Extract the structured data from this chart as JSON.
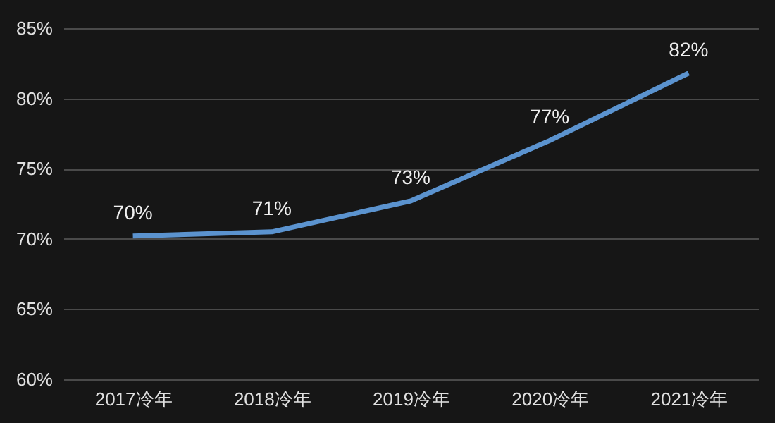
{
  "chart_data": {
    "type": "line",
    "categories": [
      "2017冷年",
      "2018冷年",
      "2019冷年",
      "2020冷年",
      "2021冷年"
    ],
    "series": [
      {
        "color": "#5b93cf",
        "values": [
          70.2,
          70.5,
          72.7,
          77.0,
          81.8
        ],
        "value_labels": [
          "70%",
          "71%",
          "73%",
          "77%",
          "82%"
        ]
      }
    ],
    "ylim": [
      60,
      85
    ],
    "yticks": [
      {
        "value": 60,
        "label": "60%"
      },
      {
        "value": 65,
        "label": "65%"
      },
      {
        "value": 70,
        "label": "70%"
      },
      {
        "value": 75,
        "label": "75%"
      },
      {
        "value": 80,
        "label": "80%"
      },
      {
        "value": 85,
        "label": "85%"
      }
    ],
    "grid": "y",
    "marker": "none",
    "line_style": "solid"
  }
}
